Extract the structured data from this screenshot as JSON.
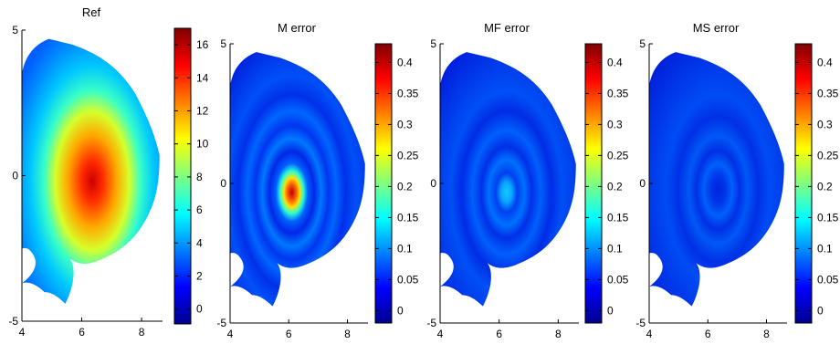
{
  "chart_data": [
    {
      "type": "heatmap",
      "title": "Ref",
      "xlabel": "",
      "ylabel": "",
      "xlim": [
        4,
        8.7
      ],
      "ylim": [
        -5,
        5
      ],
      "x_ticks": [
        "4",
        "6",
        "8"
      ],
      "y_ticks": [
        "5",
        "0",
        "-5"
      ],
      "colorbar": {
        "min": -0.9,
        "max": 17,
        "ticks": [
          "0",
          "2",
          "4",
          "6",
          "8",
          "10",
          "12",
          "14",
          "16"
        ]
      },
      "field": {
        "kind": "peak",
        "center": [
          6.4,
          0.5
        ],
        "peak_value": 16.5,
        "edge_value": 3.0,
        "colormap": "jet"
      }
    },
    {
      "type": "heatmap",
      "title": "M error",
      "xlabel": "",
      "ylabel": "",
      "xlim": [
        4,
        8.7
      ],
      "ylim": [
        -5,
        5
      ],
      "x_ticks": [
        "4",
        "6",
        "8"
      ],
      "y_ticks": [
        "5",
        "0",
        "-5"
      ],
      "colorbar": {
        "min": -0.02,
        "max": 0.43,
        "ticks": [
          "0",
          "0.05",
          "0.1",
          "0.15",
          "0.2",
          "0.25",
          "0.3",
          "0.35",
          "0.4"
        ]
      },
      "field": {
        "kind": "rings",
        "center": [
          6.2,
          0.5
        ],
        "peak_value": 0.42,
        "ring_value": 0.14,
        "colormap": "jet"
      }
    },
    {
      "type": "heatmap",
      "title": "MF error",
      "xlabel": "",
      "ylabel": "",
      "xlim": [
        4,
        8.7
      ],
      "ylim": [
        -5,
        5
      ],
      "x_ticks": [
        "4",
        "6",
        "8"
      ],
      "y_ticks": [
        "5",
        "0",
        "-5"
      ],
      "colorbar": {
        "min": -0.02,
        "max": 0.43,
        "ticks": [
          "0",
          "0.05",
          "0.1",
          "0.15",
          "0.2",
          "0.25",
          "0.3",
          "0.35",
          "0.4"
        ]
      },
      "field": {
        "kind": "rings",
        "center": [
          6.3,
          0.5
        ],
        "peak_value": 0.16,
        "ring_value": 0.1,
        "colormap": "jet"
      }
    },
    {
      "type": "heatmap",
      "title": "MS error",
      "xlabel": "",
      "ylabel": "",
      "xlim": [
        4,
        8.7
      ],
      "ylim": [
        -5,
        5
      ],
      "x_ticks": [
        "4",
        "6",
        "8"
      ],
      "y_ticks": [
        "5",
        "0",
        "-5"
      ],
      "colorbar": {
        "min": -0.02,
        "max": 0.43,
        "ticks": [
          "0",
          "0.05",
          "0.1",
          "0.15",
          "0.2",
          "0.25",
          "0.3",
          "0.35",
          "0.4"
        ]
      },
      "field": {
        "kind": "rings",
        "center": [
          6.4,
          0.4
        ],
        "peak_value": 0.05,
        "ring_value": 0.09,
        "colormap": "jet"
      }
    }
  ]
}
